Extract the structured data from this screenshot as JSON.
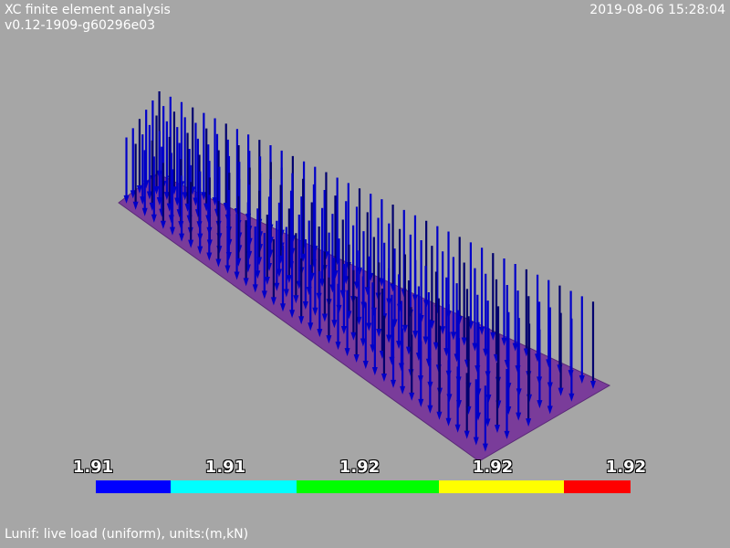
{
  "header": {
    "title": "XC finite element analysis",
    "version": "v0.12-1909-g60296e03",
    "timestamp": "2019-08-06 15:28:04"
  },
  "caption": "Lunif: live load (uniform), units:(m,kN)",
  "colors": {
    "background": "#a6a6a6",
    "slab_fill": "#7a3c9a",
    "arrow": "#0000c8",
    "arrow_dark": "#00006e"
  },
  "legend": {
    "tick_labels": [
      "1.91",
      "1.91",
      "1.92",
      "1.92",
      "1.92"
    ],
    "color_segments": [
      {
        "color": "#0000ff"
      },
      {
        "color": "#00ffff"
      },
      {
        "color": "#00ff00"
      },
      {
        "color": "#ffff00"
      },
      {
        "color": "#ff0000"
      }
    ]
  }
}
